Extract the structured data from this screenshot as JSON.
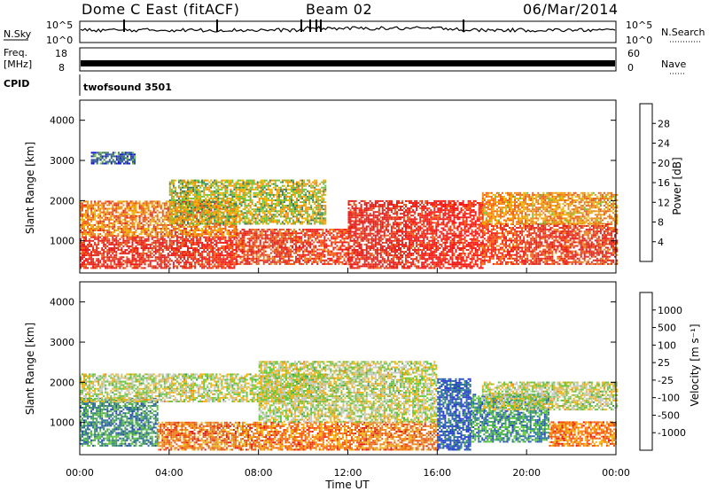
{
  "header": {
    "station": "Dome C East (fitACF)",
    "beam": "Beam 02",
    "date": "06/Mar/2014"
  },
  "params": {
    "nsky_label": "N.Sky",
    "nsky_ticks": [
      "10^5",
      "10^0"
    ],
    "nsearch_label": "N.Search",
    "nsearch_ticks": [
      "10^5",
      "10^0"
    ],
    "freq_label_1": "Freq.",
    "freq_label_2": "[MHz]",
    "freq_ticks": [
      "18",
      "8"
    ],
    "nave_label": "Nave",
    "nave_ticks": [
      "60",
      "0"
    ],
    "cpid_label": "CPID",
    "cpid_value": "twofsound 3501"
  },
  "colors": {
    "power_scale": [
      "#1414e6",
      "#2c4fa8",
      "#3a7a5a",
      "#6cc23c",
      "#f0b400",
      "#f08a14",
      "#f05a14",
      "#e6281e",
      "#f01414"
    ],
    "velocity_scale": [
      "#2840c8",
      "#2c6e9c",
      "#3c9c5a",
      "#64c83c",
      "#c8c8c0",
      "#f0b414",
      "#f08214",
      "#f05014",
      "#e61414"
    ],
    "background": "#ffffff",
    "text": "#000000"
  },
  "chart_data": [
    {
      "type": "heatmap",
      "panel": "power",
      "ylabel": "Slant Range [km]",
      "y_ticks": [
        "1000",
        "2000",
        "3000",
        "4000"
      ],
      "ylim": [
        200,
        4500
      ],
      "x_ticks": [
        "00:00",
        "04:00",
        "08:00",
        "12:00",
        "16:00",
        "20:00",
        "00:00"
      ],
      "xlim_hours": [
        0,
        24
      ],
      "colorbar_label": "Power [dB]",
      "colorbar_ticks": [
        "4",
        "8",
        "12",
        "16",
        "20",
        "24",
        "28"
      ],
      "bands_km": [
        {
          "t0": 0.0,
          "t1": 7.0,
          "r0": 300,
          "r1": 1100,
          "level": 0.85
        },
        {
          "t0": 0.0,
          "t1": 7.0,
          "r0": 1100,
          "r1": 2000,
          "level": 0.65
        },
        {
          "t0": 4.0,
          "t1": 11.0,
          "r0": 1400,
          "r1": 2500,
          "level": 0.45
        },
        {
          "t0": 7.0,
          "t1": 12.0,
          "r0": 400,
          "r1": 1300,
          "level": 0.8
        },
        {
          "t0": 12.0,
          "t1": 18.0,
          "r0": 300,
          "r1": 2000,
          "level": 0.88
        },
        {
          "t0": 18.0,
          "t1": 24.0,
          "r0": 400,
          "r1": 1400,
          "level": 0.8
        },
        {
          "t0": 18.0,
          "t1": 24.0,
          "r0": 1400,
          "r1": 2200,
          "level": 0.6
        },
        {
          "t0": 0.5,
          "t1": 2.5,
          "r0": 2900,
          "r1": 3200,
          "level": 0.2
        }
      ]
    },
    {
      "type": "heatmap",
      "panel": "velocity",
      "ylabel": "Slant Range [km]",
      "y_ticks": [
        "1000",
        "2000",
        "3000",
        "4000"
      ],
      "ylim": [
        200,
        4500
      ],
      "x_ticks": [
        "00:00",
        "04:00",
        "08:00",
        "12:00",
        "16:00",
        "20:00",
        "00:00"
      ],
      "xlim_hours": [
        0,
        24
      ],
      "xlabel": "Time UT",
      "colorbar_label": "Velocity [m s⁻¹]",
      "colorbar_ticks": [
        "1000",
        "500",
        "100",
        "25",
        "-25",
        "-100",
        "-500",
        "-1000"
      ],
      "bands_km": [
        {
          "t0": 0.0,
          "t1": 3.5,
          "r0": 400,
          "r1": 1600,
          "level": 0.25
        },
        {
          "t0": 0.0,
          "t1": 11.0,
          "r0": 1500,
          "r1": 2200,
          "level": 0.5
        },
        {
          "t0": 3.5,
          "t1": 16.0,
          "r0": 300,
          "r1": 1000,
          "level": 0.75
        },
        {
          "t0": 8.0,
          "t1": 16.0,
          "r0": 1000,
          "r1": 2500,
          "level": 0.5
        },
        {
          "t0": 16.0,
          "t1": 17.5,
          "r0": 300,
          "r1": 2100,
          "level": 0.1
        },
        {
          "t0": 17.5,
          "t1": 21.0,
          "r0": 500,
          "r1": 1700,
          "level": 0.25
        },
        {
          "t0": 21.0,
          "t1": 24.0,
          "r0": 400,
          "r1": 1000,
          "level": 0.75
        },
        {
          "t0": 18.0,
          "t1": 24.0,
          "r0": 1300,
          "r1": 2000,
          "level": 0.5
        }
      ]
    }
  ]
}
